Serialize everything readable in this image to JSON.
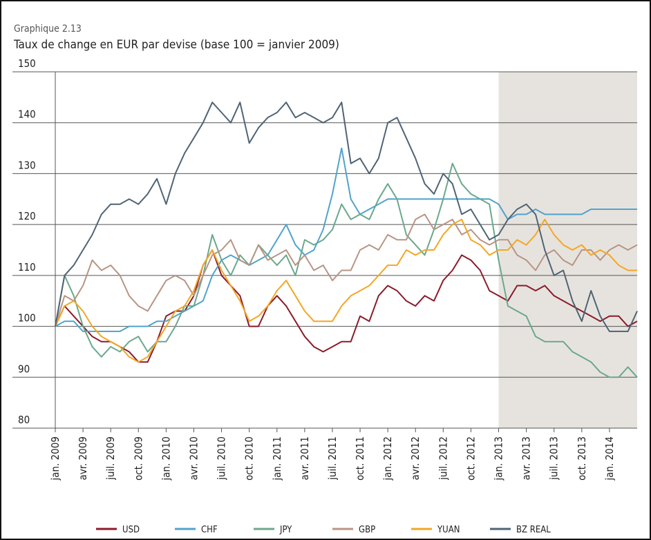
{
  "chart_data": {
    "type": "line",
    "label": "Graphique 2.13",
    "title": "Taux de change en EUR par devise (base 100 = janvier 2009)",
    "categories": [
      "jan. 2009",
      null,
      null,
      "avr. 2009",
      null,
      null,
      "juil. 2009",
      null,
      null,
      "oct. 2009",
      null,
      null,
      "jan. 2010",
      null,
      null,
      "avr. 2010",
      null,
      null,
      "juil. 2010",
      null,
      null,
      "oct. 2010",
      null,
      null,
      "jan. 2011",
      null,
      null,
      "avr. 2011",
      null,
      null,
      "juil. 2011",
      null,
      null,
      "oct. 2011",
      null,
      null,
      "jan. 2012",
      null,
      null,
      "avr. 2012",
      null,
      null,
      "juil. 2012",
      null,
      null,
      "oct. 2012",
      null,
      null,
      "jan. 2013",
      null,
      null,
      "avr. 2013",
      null,
      null,
      "juil. 2013",
      null,
      null,
      "oct. 2013",
      null,
      null,
      "jan. 2014",
      null,
      null,
      null
    ],
    "series": [
      {
        "name": "USD",
        "color": "#8b1a2b",
        "values": [
          100,
          104,
          102,
          100,
          98,
          97,
          97,
          96,
          95,
          93,
          93,
          97,
          102,
          103,
          103,
          106,
          112,
          115,
          110,
          108,
          106,
          100,
          100,
          104,
          106,
          104,
          101,
          98,
          96,
          95,
          96,
          97,
          97,
          102,
          101,
          106,
          108,
          107,
          105,
          104,
          106,
          105,
          109,
          111,
          114,
          113,
          111,
          107,
          106,
          105,
          108,
          108,
          107,
          108,
          106,
          105,
          104,
          103,
          102,
          101,
          102,
          102,
          100,
          101
        ]
      },
      {
        "name": "CHF",
        "color": "#4fa3cc",
        "values": [
          100,
          101,
          101,
          99,
          99,
          99,
          99,
          99,
          100,
          100,
          100,
          101,
          101,
          102,
          103,
          104,
          105,
          110,
          113,
          114,
          113,
          112,
          113,
          114,
          117,
          120,
          116,
          114,
          115,
          119,
          126,
          135,
          125,
          122,
          123,
          124,
          125,
          125,
          125,
          125,
          125,
          125,
          125,
          125,
          125,
          125,
          125,
          125,
          124,
          121,
          122,
          122,
          123,
          122,
          122,
          122,
          122,
          122,
          123,
          123,
          123,
          123,
          123,
          123
        ]
      },
      {
        "name": "JPY",
        "color": "#6aa88c",
        "values": [
          100,
          110,
          106,
          100,
          96,
          94,
          96,
          95,
          97,
          98,
          95,
          97,
          97,
          100,
          104,
          104,
          110,
          118,
          113,
          110,
          114,
          112,
          116,
          114,
          112,
          114,
          110,
          117,
          116,
          117,
          119,
          124,
          121,
          122,
          121,
          125,
          128,
          125,
          118,
          116,
          114,
          119,
          125,
          132,
          128,
          126,
          125,
          124,
          113,
          104,
          103,
          102,
          98,
          97,
          97,
          97,
          95,
          94,
          93,
          91,
          90,
          90,
          92,
          90
        ]
      },
      {
        "name": "GBP",
        "color": "#b89484",
        "values": [
          100,
          106,
          105,
          108,
          113,
          111,
          112,
          110,
          106,
          104,
          103,
          106,
          109,
          110,
          109,
          106,
          110,
          114,
          115,
          117,
          113,
          112,
          116,
          113,
          114,
          115,
          112,
          114,
          111,
          112,
          109,
          111,
          111,
          115,
          116,
          115,
          118,
          117,
          117,
          121,
          122,
          119,
          120,
          121,
          118,
          119,
          117,
          116,
          117,
          117,
          114,
          113,
          111,
          114,
          115,
          113,
          112,
          115,
          115,
          113,
          115,
          116,
          115,
          116
        ]
      },
      {
        "name": "YUAN",
        "color": "#f5a623",
        "values": [
          100,
          104,
          105,
          103,
          100,
          98,
          97,
          96,
          94,
          93,
          94,
          97,
          100,
          103,
          104,
          107,
          112,
          115,
          111,
          108,
          105,
          101,
          102,
          104,
          107,
          109,
          106,
          103,
          101,
          101,
          101,
          104,
          106,
          107,
          108,
          110,
          112,
          112,
          115,
          114,
          115,
          115,
          118,
          120,
          121,
          117,
          116,
          114,
          115,
          115,
          117,
          116,
          118,
          121,
          118,
          116,
          115,
          116,
          114,
          115,
          114,
          112,
          111,
          111
        ]
      },
      {
        "name": "BZ REAL",
        "color": "#4f6375",
        "values": [
          100,
          110,
          112,
          115,
          118,
          122,
          124,
          124,
          125,
          124,
          126,
          129,
          124,
          130,
          134,
          137,
          140,
          144,
          142,
          140,
          144,
          136,
          139,
          141,
          142,
          144,
          141,
          142,
          141,
          140,
          141,
          144,
          132,
          133,
          130,
          133,
          140,
          141,
          137,
          133,
          128,
          126,
          130,
          128,
          122,
          123,
          120,
          117,
          118,
          121,
          123,
          124,
          122,
          115,
          110,
          111,
          105,
          101,
          107,
          102,
          99,
          99,
          99,
          103
        ]
      }
    ],
    "ylim": [
      80,
      150
    ],
    "yticks": [
      80,
      90,
      100,
      110,
      120,
      130,
      140,
      150
    ],
    "grid": true,
    "shaded_from": 48,
    "legend": "bottom"
  }
}
